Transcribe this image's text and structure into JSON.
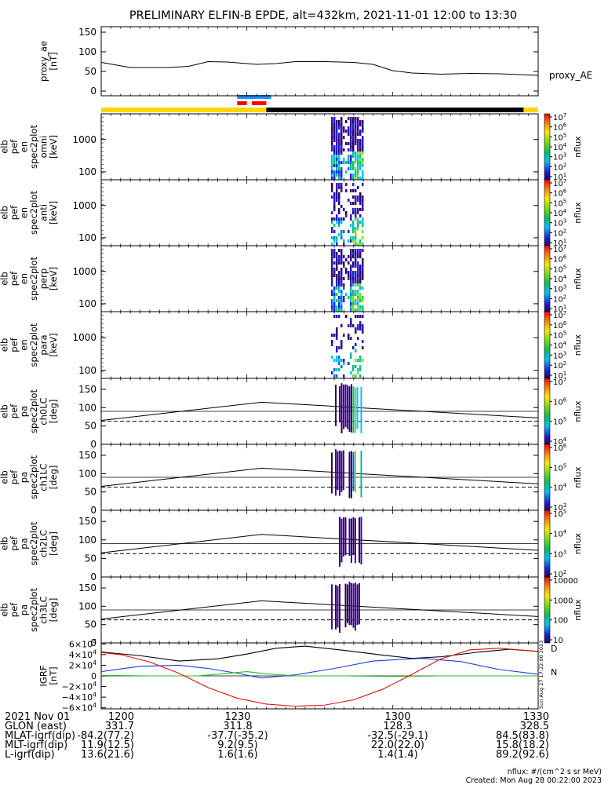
{
  "title": "PRELIMINARY ELFIN-B EPDE, alt=432km, 2021-11-01 12:00 to 13:30",
  "chart_data": {
    "type": "line",
    "x_range": [
      "12:00",
      "13:30"
    ],
    "x_ticks": [
      "1200",
      "1230",
      "1300",
      "1330"
    ],
    "panels": [
      {
        "ylabel": [
          "proxy_ae",
          "[nT]"
        ],
        "yticks": [
          "150",
          "100",
          "50",
          "0"
        ],
        "ylim": [
          0,
          160
        ],
        "series": [
          {
            "name": "proxy_AE",
            "x": [
              "12:00",
              "12:06",
              "12:14",
              "12:18",
              "12:22",
              "12:26",
              "12:32",
              "12:36",
              "12:40",
              "12:46",
              "12:52",
              "12:56",
              "13:00",
              "13:04",
              "13:10",
              "13:16",
              "13:22",
              "13:26",
              "13:30"
            ],
            "y": [
              73,
              60,
              60,
              63,
              75,
              74,
              68,
              70,
              75,
              75,
              73,
              68,
              52,
              46,
              43,
              45,
              44,
              42,
              40
            ]
          }
        ]
      },
      {
        "ylabel": [
          "elb",
          "pef",
          "en",
          "spec2plot",
          "omni",
          "[keV]"
        ],
        "yticks": [
          "1000",
          "100"
        ],
        "colorbar_ticks": [
          "10^1",
          "10^2",
          "10^3",
          "10^4",
          "10^5",
          "10^6",
          "10^7"
        ],
        "colorbar_label": "nflux"
      },
      {
        "ylabel": [
          "elb",
          "pef",
          "en",
          "spec2plot",
          "anti",
          "[keV]"
        ],
        "yticks": [
          "1000",
          "100"
        ],
        "colorbar_ticks": [
          "10^1",
          "10^2",
          "10^3",
          "10^4",
          "10^5",
          "10^6",
          "10^7"
        ],
        "colorbar_label": "nflux"
      },
      {
        "ylabel": [
          "elb",
          "pef",
          "en",
          "spec2plot",
          "perp",
          "[keV]"
        ],
        "yticks": [
          "1000",
          "100"
        ],
        "colorbar_ticks": [
          "10^1",
          "10^2",
          "10^3",
          "10^4",
          "10^5",
          "10^6",
          "10^7"
        ],
        "colorbar_label": "nflux"
      },
      {
        "ylabel": [
          "elb",
          "pef",
          "en",
          "spec2plot",
          "para",
          "[keV]"
        ],
        "yticks": [
          "1000",
          "100"
        ],
        "colorbar_ticks": [
          "10^1",
          "10^2",
          "10^3",
          "10^4",
          "10^5",
          "10^6",
          "10^7"
        ],
        "colorbar_label": "nflux"
      },
      {
        "ylabel": [
          "elb",
          "pef",
          "pa",
          "spec2plot",
          "ch0LC",
          "[deg]"
        ],
        "yticks": [
          "150",
          "100",
          "50",
          "0"
        ],
        "ylim": [
          0,
          180
        ],
        "colorbar_ticks": [
          "10^4",
          "10^5",
          "10^6",
          "10^7"
        ],
        "colorbar_label": "nflux"
      },
      {
        "ylabel": [
          "elb",
          "pef",
          "pa",
          "spec2plot",
          "ch1LC",
          "[deg]"
        ],
        "yticks": [
          "150",
          "100",
          "50",
          "0"
        ],
        "ylim": [
          0,
          180
        ],
        "colorbar_ticks": [
          "10^3",
          "10^4",
          "10^5",
          "10^6"
        ],
        "colorbar_label": "nflux"
      },
      {
        "ylabel": [
          "elb",
          "pef",
          "pa",
          "spec2plot",
          "ch2LC",
          "[deg]"
        ],
        "yticks": [
          "150",
          "100",
          "50",
          "0"
        ],
        "ylim": [
          0,
          180
        ],
        "colorbar_ticks": [
          "10^2",
          "10^3",
          "10^4",
          "10^5"
        ],
        "colorbar_label": "nflux"
      },
      {
        "ylabel": [
          "elb",
          "pef",
          "pa",
          "spec2plot",
          "ch3LC",
          "[deg]"
        ],
        "yticks": [
          "150",
          "100",
          "50",
          "0"
        ],
        "ylim": [
          0,
          180
        ],
        "colorbar_ticks": [
          "10",
          "100",
          "1000",
          "10000"
        ],
        "colorbar_label": "nflux"
      },
      {
        "ylabel": [
          "IGRF",
          "[nT]"
        ],
        "yticks": [
          "6×10^4",
          "4×10^4",
          "2×10^4",
          "0",
          "−2×10^4",
          "−4×10^4",
          "−6×10^4"
        ],
        "ylim": [
          -62000,
          62000
        ],
        "legend": [
          "D",
          "N"
        ],
        "series": [
          {
            "name": "black",
            "x": [
              "12:00",
              "12:08",
              "12:16",
              "12:24",
              "12:30",
              "12:36",
              "12:42",
              "12:50",
              "12:58",
              "13:04",
              "13:10",
              "13:18",
              "13:24",
              "13:30"
            ],
            "y": [
              45000,
              38000,
              28000,
              32000,
              41000,
              52000,
              56000,
              48000,
              39000,
              33000,
              36000,
              45000,
              50000,
              46000
            ]
          },
          {
            "name": "blue",
            "x": [
              "12:00",
              "12:08",
              "12:16",
              "12:22",
              "12:28",
              "12:33",
              "12:40",
              "12:48",
              "12:56",
              "13:06",
              "13:14",
              "13:22",
              "13:30"
            ],
            "y": [
              8000,
              18000,
              20000,
              14000,
              5000,
              -4000,
              2000,
              14000,
              28000,
              33000,
              27000,
              12000,
              3000
            ]
          },
          {
            "name": "green",
            "x": [
              "12:00",
              "12:10",
              "12:20",
              "12:30",
              "12:34",
              "12:40",
              "12:50",
              "13:00",
              "13:10",
              "13:20",
              "13:30"
            ],
            "y": [
              1000,
              0,
              0,
              8000,
              4000,
              0,
              0,
              -1000,
              0,
              0,
              0
            ]
          },
          {
            "name": "red",
            "x": [
              "12:00",
              "12:04",
              "12:10",
              "12:16",
              "12:22",
              "12:28",
              "12:34",
              "12:40",
              "12:46",
              "12:52",
              "12:58",
              "13:04",
              "13:10",
              "13:16",
              "13:22",
              "13:26",
              "13:30"
            ],
            "y": [
              44000,
              40000,
              26000,
              5000,
              -22000,
              -42000,
              -53000,
              -57000,
              -55000,
              -45000,
              -25000,
              3000,
              32000,
              49000,
              52000,
              49000,
              46000
            ]
          }
        ]
      }
    ],
    "status_bars": [
      {
        "segments": [
          {
            "from": "12:28",
            "to": "12:35",
            "color": "#1e90ff"
          }
        ]
      },
      {
        "segments": [
          {
            "from": "12:28",
            "to": "12:30",
            "color": "#ff0000"
          },
          {
            "from": "12:31",
            "to": "12:34",
            "color": "#ff0000"
          }
        ]
      },
      {
        "segments": [
          {
            "from": "12:00",
            "to": "12:34",
            "color": "#ffd700"
          },
          {
            "from": "12:34",
            "to": "13:27",
            "color": "#000000"
          },
          {
            "from": "13:27",
            "to": "13:30",
            "color": "#ffd700"
          }
        ]
      }
    ]
  },
  "footer": {
    "rows": [
      {
        "label": "2021 Nov 01",
        "values": [
          "1200",
          "1230",
          "1300",
          "1330"
        ]
      },
      {
        "label": "GLON (east)",
        "values": [
          "331.7",
          "311.8",
          "128.3",
          "328.5"
        ]
      },
      {
        "label": "MLAT-igrf(dip)",
        "values": [
          "-84.2(77.2)",
          "-37.7(-35.2)",
          "-32.5(-29.1)",
          "84.5(83.8)"
        ]
      },
      {
        "label": "MLT-igrf(dip)",
        "values": [
          "11.9(12.5)",
          "9.2(9.5)",
          "22.0(22.0)",
          "15.8(18.2)"
        ]
      },
      {
        "label": "L-igrf(dip)",
        "values": [
          "13.6(21.6)",
          "1.6(1.6)",
          "1.4(1.4)",
          "89.2(92.6)"
        ]
      }
    ],
    "units_note": "nflux: #/(cm^2 s sr MeV)",
    "created": "Created: Mon Aug 28 00:22:00 2023",
    "side_note": "Sun Aug 27 17:22:00 2023"
  }
}
